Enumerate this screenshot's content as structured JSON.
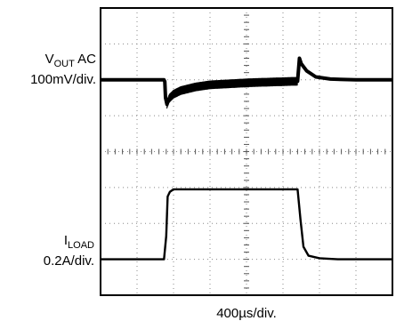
{
  "chart_data": {
    "type": "line",
    "title": "",
    "grid": true,
    "divisions": {
      "x": 8,
      "y": 8
    },
    "x_scale": "400µs/div.",
    "series": [
      {
        "label_main": "V",
        "label_sub": "OUT",
        "label_suffix": " AC",
        "scale": "100mV/div.",
        "points": [
          [
            0,
            0.0
          ],
          [
            1.74,
            0.0
          ],
          [
            1.76,
            -0.05
          ],
          [
            1.78,
            -0.5
          ],
          [
            1.82,
            -0.68
          ],
          [
            1.88,
            -0.52
          ],
          [
            2.0,
            -0.4
          ],
          [
            2.2,
            -0.3
          ],
          [
            2.6,
            -0.2
          ],
          [
            3.0,
            -0.14
          ],
          [
            4.1,
            -0.08
          ],
          [
            5.4,
            -0.04
          ],
          [
            5.45,
            0.6
          ],
          [
            5.5,
            0.45
          ],
          [
            5.65,
            0.25
          ],
          [
            5.9,
            0.08
          ],
          [
            6.3,
            0.02
          ],
          [
            7.0,
            0.0
          ],
          [
            8.0,
            0.0
          ]
        ],
        "ripple": {
          "start": 1.82,
          "end": 5.42,
          "amplitude": 0.12
        },
        "thick_line": true
      },
      {
        "label_main": "I",
        "label_sub": "LOAD",
        "label_suffix": "",
        "scale": "0.2A/div.",
        "points": [
          [
            0,
            0.0
          ],
          [
            1.74,
            0.0
          ],
          [
            1.8,
            0.65
          ],
          [
            1.84,
            1.75
          ],
          [
            1.9,
            1.88
          ],
          [
            2.0,
            1.95
          ],
          [
            5.4,
            1.95
          ],
          [
            5.48,
            1.1
          ],
          [
            5.56,
            0.35
          ],
          [
            5.7,
            0.1
          ],
          [
            6.0,
            0.03
          ],
          [
            6.5,
            0.0
          ],
          [
            8.0,
            0.0
          ]
        ],
        "thick_line": false
      }
    ]
  }
}
